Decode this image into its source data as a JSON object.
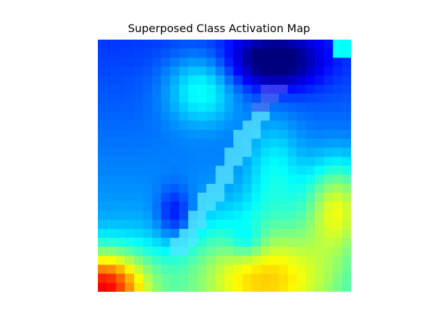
{
  "title": "Superposed Class Activation Map",
  "image": {
    "kind": "class-activation-map overlay on a handwritten digit",
    "colormap": "jet",
    "grid": [
      28,
      28
    ],
    "background": "#ffffff",
    "palette": {
      "navy": "#00005a",
      "blue": "#0022b4",
      "mid_blue": "#0055b8",
      "teal": "#00a0b4",
      "cyan": "#40ffff",
      "yellow_green": "#a0b830",
      "mustard": "#c0a000",
      "orange": "#c08000",
      "red": "#c01000",
      "dark_red": "#600000"
    }
  }
}
